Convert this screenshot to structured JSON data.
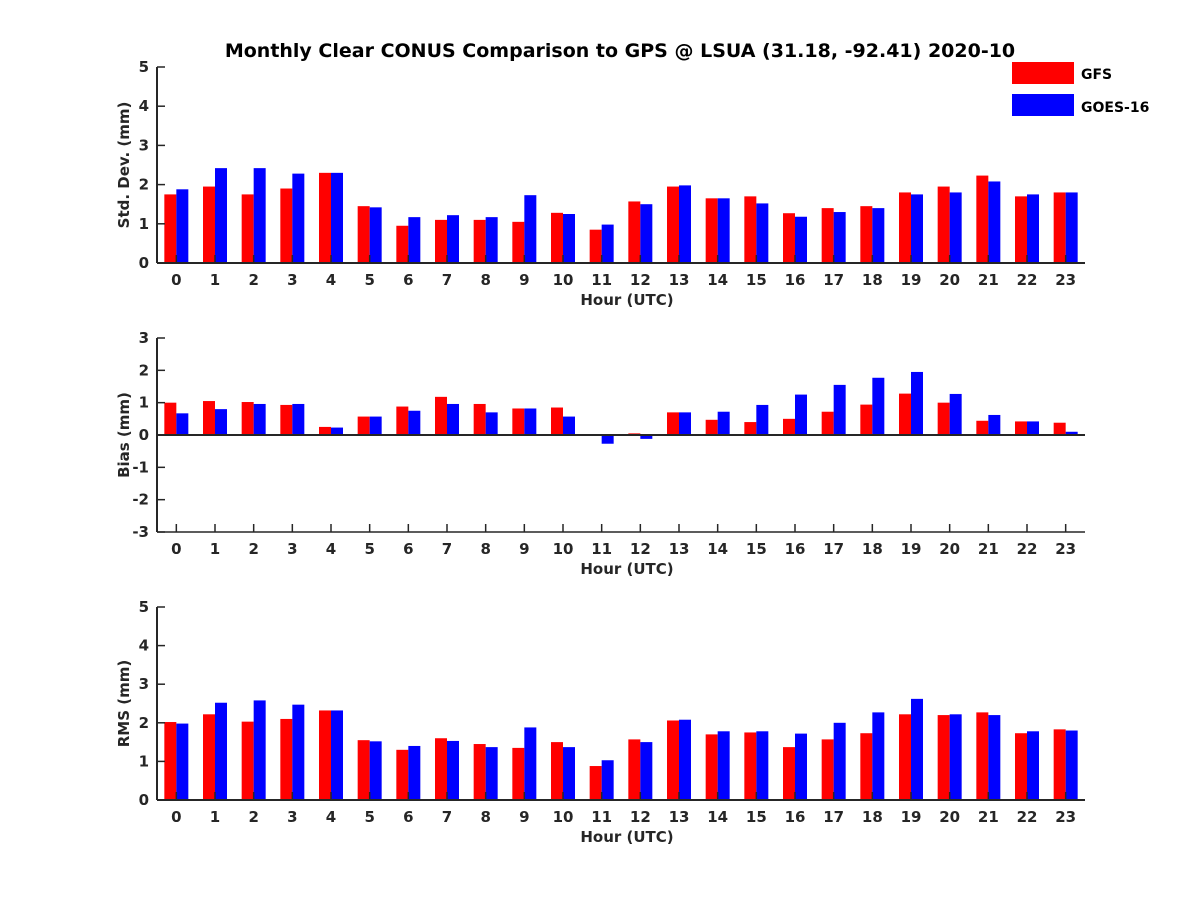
{
  "chart_data": {
    "title": "Monthly Clear CONUS Comparison to GPS @ LSUA (31.18, -92.41) 2020-10",
    "legend": {
      "placement": "top-right",
      "entries": [
        {
          "name": "GFS",
          "color": "#ff0000"
        },
        {
          "name": "GOES-16",
          "color": "#0000ff"
        }
      ]
    },
    "x": [
      0,
      1,
      2,
      3,
      4,
      5,
      6,
      7,
      8,
      9,
      10,
      11,
      12,
      13,
      14,
      15,
      16,
      17,
      18,
      19,
      20,
      21,
      22,
      23
    ],
    "panels": [
      {
        "type": "bar",
        "xlabel": "Hour (UTC)",
        "ylabel": "Std. Dev. (mm)",
        "ylim": [
          0,
          5
        ],
        "yticks": [
          0,
          1,
          2,
          3,
          4,
          5
        ],
        "series": [
          {
            "name": "GFS",
            "color": "#ff0000",
            "values": [
              1.75,
              1.95,
              1.75,
              1.9,
              2.3,
              1.45,
              0.95,
              1.1,
              1.1,
              1.05,
              1.28,
              0.85,
              1.57,
              1.95,
              1.65,
              1.7,
              1.27,
              1.4,
              1.45,
              1.8,
              1.95,
              2.23,
              1.7,
              1.8
            ]
          },
          {
            "name": "GOES-16",
            "color": "#0000ff",
            "values": [
              1.88,
              2.42,
              2.42,
              2.28,
              2.3,
              1.42,
              1.17,
              1.22,
              1.17,
              1.73,
              1.25,
              0.98,
              1.5,
              1.98,
              1.65,
              1.52,
              1.18,
              1.3,
              1.4,
              1.75,
              1.8,
              2.08,
              1.75,
              1.8
            ]
          }
        ]
      },
      {
        "type": "bar",
        "xlabel": "Hour (UTC)",
        "ylabel": "Bias (mm)",
        "ylim": [
          -3,
          3
        ],
        "yticks": [
          -3,
          -2,
          -1,
          0,
          1,
          2,
          3
        ],
        "series": [
          {
            "name": "GFS",
            "color": "#ff0000",
            "values": [
              1.0,
              1.05,
              1.02,
              0.93,
              0.25,
              0.57,
              0.88,
              1.18,
              0.96,
              0.82,
              0.85,
              0.0,
              0.05,
              0.7,
              0.47,
              0.4,
              0.5,
              0.72,
              0.94,
              1.28,
              1.0,
              0.44,
              0.42,
              0.38
            ]
          },
          {
            "name": "GOES-16",
            "color": "#0000ff",
            "values": [
              0.67,
              0.8,
              0.96,
              0.96,
              0.23,
              0.57,
              0.75,
              0.96,
              0.7,
              0.82,
              0.57,
              -0.27,
              -0.12,
              0.7,
              0.72,
              0.93,
              1.25,
              1.55,
              1.77,
              1.95,
              1.27,
              0.62,
              0.42,
              0.1
            ]
          }
        ]
      },
      {
        "type": "bar",
        "xlabel": "Hour (UTC)",
        "ylabel": "RMS (mm)",
        "ylim": [
          0,
          5
        ],
        "yticks": [
          0,
          1,
          2,
          3,
          4,
          5
        ],
        "series": [
          {
            "name": "GFS",
            "color": "#ff0000",
            "values": [
              2.02,
              2.22,
              2.03,
              2.1,
              2.32,
              1.55,
              1.3,
              1.6,
              1.45,
              1.35,
              1.5,
              0.88,
              1.57,
              2.06,
              1.7,
              1.75,
              1.37,
              1.57,
              1.73,
              2.22,
              2.2,
              2.27,
              1.73,
              1.83
            ]
          },
          {
            "name": "GOES-16",
            "color": "#0000ff",
            "values": [
              1.98,
              2.52,
              2.58,
              2.47,
              2.32,
              1.52,
              1.4,
              1.53,
              1.37,
              1.88,
              1.37,
              1.03,
              1.5,
              2.08,
              1.78,
              1.78,
              1.72,
              2.0,
              2.27,
              2.62,
              2.22,
              2.2,
              1.78,
              1.8
            ]
          }
        ]
      }
    ]
  }
}
